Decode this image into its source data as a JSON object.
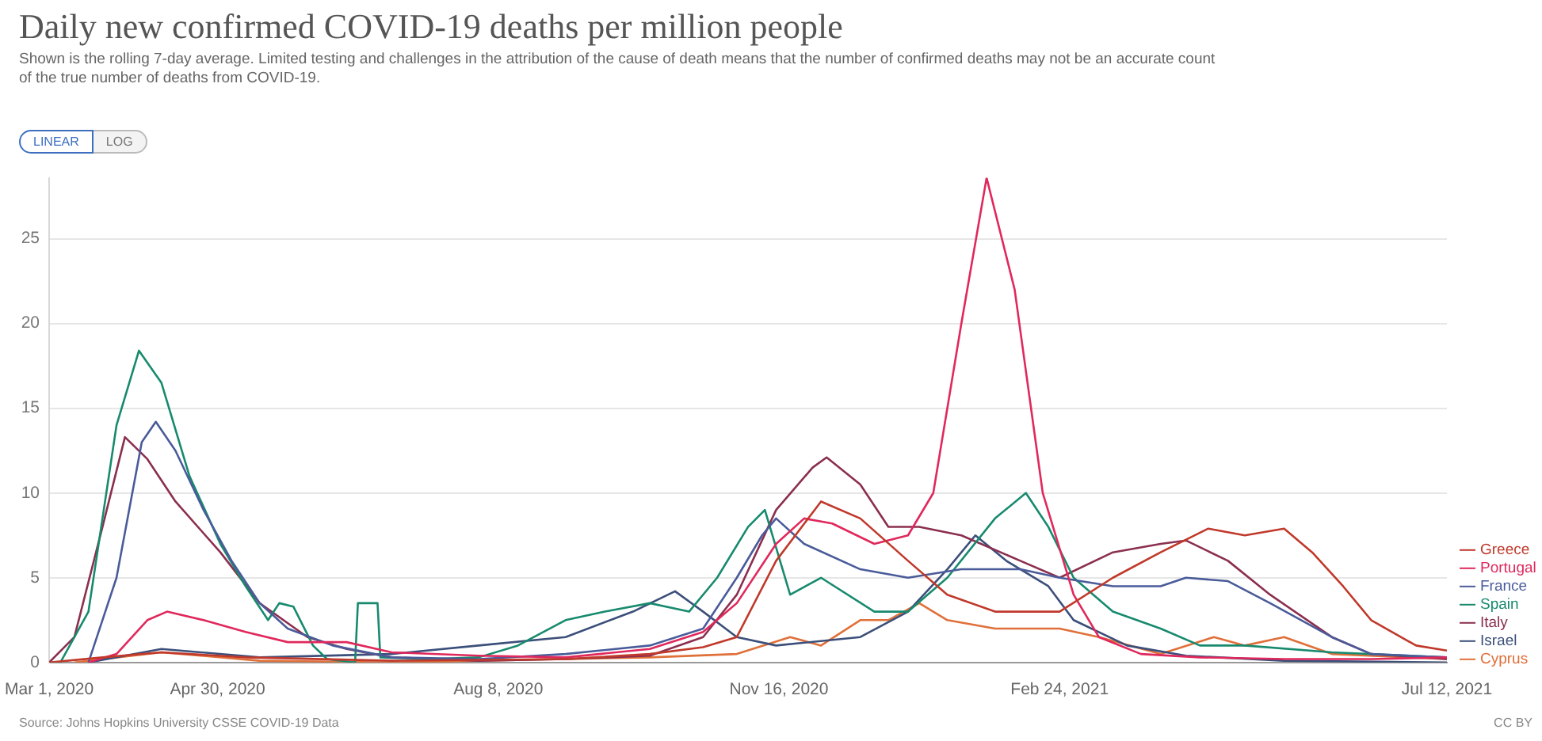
{
  "chart_data": {
    "type": "line",
    "title": "Daily new confirmed COVID-19 deaths per million people",
    "subtitle": "Shown is the rolling 7-day average. Limited testing and challenges in the attribution of the cause of death means that the number of confirmed deaths may not be an accurate count of the true number of deaths from COVID-19.",
    "annotations": [
      "LINEAR",
      "LOG",
      "Source: Johns Hopkins University CSSE COVID-19 Data",
      "CC BY"
    ],
    "xlim": [
      "2020-03-01",
      "2021-07-12"
    ],
    "xticks": [
      {
        "value": "2020-03-01",
        "label": "Mar 1, 2020"
      },
      {
        "value": "2020-04-30",
        "label": "Apr 30, 2020"
      },
      {
        "value": "2020-08-08",
        "label": "Aug 8, 2020"
      },
      {
        "value": "2020-11-16",
        "label": "Nov 16, 2020"
      },
      {
        "value": "2021-02-24",
        "label": "Feb 24, 2021"
      },
      {
        "value": "2021-07-12",
        "label": "Jul 12, 2021"
      }
    ],
    "yticks": [
      0,
      5,
      10,
      15,
      20,
      25
    ],
    "ylim": [
      0,
      28.6
    ],
    "grid": "y",
    "legend": "right",
    "marker": "none",
    "line_style": "solid",
    "series": [
      {
        "name": "Greece",
        "color": "#c0392b",
        "x": [
          "2020-03-01",
          "2020-03-20",
          "2020-04-10",
          "2020-05-10",
          "2020-07-01",
          "2020-09-01",
          "2020-10-01",
          "2020-10-20",
          "2020-11-01",
          "2020-11-15",
          "2020-12-01",
          "2020-12-15",
          "2021-01-01",
          "2021-01-15",
          "2021-02-01",
          "2021-02-24",
          "2021-03-15",
          "2021-04-01",
          "2021-04-18",
          "2021-05-01",
          "2021-05-15",
          "2021-05-25",
          "2021-06-05",
          "2021-06-15",
          "2021-07-01",
          "2021-07-12"
        ],
        "values": [
          0,
          0.3,
          0.6,
          0.3,
          0.1,
          0.2,
          0.5,
          0.9,
          1.5,
          6,
          9.5,
          8.5,
          6,
          4,
          3,
          3,
          5,
          6.5,
          7.9,
          7.5,
          7.9,
          6.5,
          4.5,
          2.5,
          1,
          0.7
        ]
      },
      {
        "name": "Portugal",
        "color": "#e0285c",
        "x": [
          "2020-03-15",
          "2020-03-25",
          "2020-04-05",
          "2020-04-12",
          "2020-04-25",
          "2020-05-10",
          "2020-05-25",
          "2020-06-15",
          "2020-07-01",
          "2020-08-01",
          "2020-09-01",
          "2020-10-01",
          "2020-10-20",
          "2020-11-01",
          "2020-11-15",
          "2020-11-25",
          "2020-12-05",
          "2020-12-20",
          "2021-01-01",
          "2021-01-10",
          "2021-01-20",
          "2021-01-29",
          "2021-02-08",
          "2021-02-18",
          "2021-03-01",
          "2021-03-10",
          "2021-03-25",
          "2021-04-15",
          "2021-05-15",
          "2021-06-15",
          "2021-07-12"
        ],
        "values": [
          0,
          0.5,
          2.5,
          3,
          2.5,
          1.8,
          1.2,
          1.2,
          0.6,
          0.4,
          0.3,
          0.8,
          1.8,
          3.5,
          7,
          8.5,
          8.2,
          7,
          7.5,
          10,
          20,
          28.6,
          22,
          10,
          4,
          1.5,
          0.5,
          0.3,
          0.2,
          0.2,
          0.3
        ]
      },
      {
        "name": "France",
        "color": "#4a5b9a",
        "x": [
          "2020-03-15",
          "2020-03-25",
          "2020-04-03",
          "2020-04-08",
          "2020-04-15",
          "2020-04-25",
          "2020-05-05",
          "2020-05-15",
          "2020-05-25",
          "2020-06-10",
          "2020-07-01",
          "2020-08-01",
          "2020-09-01",
          "2020-10-01",
          "2020-10-20",
          "2020-11-01",
          "2020-11-10",
          "2020-11-15",
          "2020-11-25",
          "2020-12-15",
          "2021-01-01",
          "2021-01-20",
          "2021-02-10",
          "2021-02-24",
          "2021-03-15",
          "2021-04-01",
          "2021-04-10",
          "2021-04-25",
          "2021-05-10",
          "2021-06-01",
          "2021-06-15",
          "2021-07-12"
        ],
        "values": [
          0,
          5,
          13,
          14.2,
          12.5,
          9,
          6,
          3.5,
          2,
          1,
          0.3,
          0.2,
          0.5,
          1,
          2,
          5,
          7.5,
          8.5,
          7,
          5.5,
          5,
          5.5,
          5.5,
          5,
          4.5,
          4.5,
          5,
          4.8,
          3.5,
          1.5,
          0.5,
          0.3
        ]
      },
      {
        "name": "Spain",
        "color": "#178a6e",
        "x": [
          "2020-03-05",
          "2020-03-15",
          "2020-03-25",
          "2020-04-02",
          "2020-04-10",
          "2020-04-20",
          "2020-05-01",
          "2020-05-10",
          "2020-05-18",
          "2020-05-22",
          "2020-05-27",
          "2020-06-03",
          "2020-06-08",
          "2020-06-18",
          "2020-06-19",
          "2020-06-26",
          "2020-06-27",
          "2020-07-15",
          "2020-08-01",
          "2020-08-15",
          "2020-09-01",
          "2020-09-15",
          "2020-10-01",
          "2020-10-15",
          "2020-10-25",
          "2020-11-05",
          "2020-11-11",
          "2020-11-20",
          "2020-12-01",
          "2020-12-20",
          "2021-01-01",
          "2021-01-15",
          "2021-02-01",
          "2021-02-12",
          "2021-02-20",
          "2021-03-01",
          "2021-03-15",
          "2021-04-01",
          "2021-04-15",
          "2021-05-01",
          "2021-06-01",
          "2021-07-12"
        ],
        "values": [
          0,
          3,
          14,
          18.4,
          16.5,
          11,
          7,
          4.5,
          2.5,
          3.5,
          3.3,
          1,
          0.2,
          0,
          3.5,
          3.5,
          0.3,
          0.2,
          0.3,
          1,
          2.5,
          3,
          3.5,
          3,
          5,
          8,
          9,
          4,
          5,
          3,
          3,
          5,
          8.5,
          10,
          8,
          5,
          3,
          2,
          1,
          1,
          0.6,
          0.3
        ]
      },
      {
        "name": "Italy",
        "color": "#8b2f4f",
        "x": [
          "2020-03-01",
          "2020-03-10",
          "2020-03-20",
          "2020-03-28",
          "2020-04-05",
          "2020-04-15",
          "2020-05-01",
          "2020-05-15",
          "2020-06-01",
          "2020-06-15",
          "2020-07-01",
          "2020-08-01",
          "2020-09-01",
          "2020-10-01",
          "2020-10-20",
          "2020-11-01",
          "2020-11-15",
          "2020-11-28",
          "2020-12-03",
          "2020-12-15",
          "2020-12-25",
          "2021-01-05",
          "2021-01-20",
          "2021-02-10",
          "2021-02-24",
          "2021-03-15",
          "2021-04-01",
          "2021-04-10",
          "2021-04-25",
          "2021-05-10",
          "2021-06-01",
          "2021-06-15",
          "2021-07-12"
        ],
        "values": [
          0,
          1.5,
          8,
          13.3,
          12,
          9.5,
          6.5,
          3.5,
          1.5,
          0.8,
          0.3,
          0.1,
          0.2,
          0.4,
          1.5,
          4,
          9,
          11.5,
          12.1,
          10.5,
          8,
          8,
          7.5,
          6,
          5,
          6.5,
          7,
          7.2,
          6,
          4,
          1.5,
          0.5,
          0.2
        ]
      },
      {
        "name": "Israel",
        "color": "#3b4f7a",
        "x": [
          "2020-03-15",
          "2020-04-10",
          "2020-05-15",
          "2020-07-01",
          "2020-08-01",
          "2020-09-01",
          "2020-09-25",
          "2020-10-10",
          "2020-10-20",
          "2020-11-01",
          "2020-11-15",
          "2020-12-15",
          "2021-01-01",
          "2021-01-15",
          "2021-01-25",
          "2021-02-05",
          "2021-02-20",
          "2021-03-01",
          "2021-03-20",
          "2021-04-10",
          "2021-05-15",
          "2021-07-12"
        ],
        "values": [
          0,
          0.8,
          0.3,
          0.5,
          1,
          1.5,
          3,
          4.2,
          3,
          1.5,
          1,
          1.5,
          3,
          5.5,
          7.5,
          6,
          4.5,
          2.5,
          1,
          0.4,
          0.1,
          0
        ]
      },
      {
        "name": "Cyprus",
        "color": "#e0703a",
        "x": [
          "2020-03-10",
          "2020-04-10",
          "2020-05-15",
          "2020-07-01",
          "2020-10-01",
          "2020-11-01",
          "2020-11-20",
          "2020-12-01",
          "2020-12-15",
          "2020-12-25",
          "2021-01-05",
          "2021-01-15",
          "2021-02-01",
          "2021-02-24",
          "2021-03-10",
          "2021-04-01",
          "2021-04-20",
          "2021-05-01",
          "2021-05-15",
          "2021-06-01",
          "2021-07-12"
        ],
        "values": [
          0,
          0.6,
          0.1,
          0,
          0.3,
          0.5,
          1.5,
          1,
          2.5,
          2.5,
          3.5,
          2.5,
          2,
          2,
          1.5,
          0.5,
          1.5,
          1,
          1.5,
          0.5,
          0.2
        ]
      }
    ]
  }
}
